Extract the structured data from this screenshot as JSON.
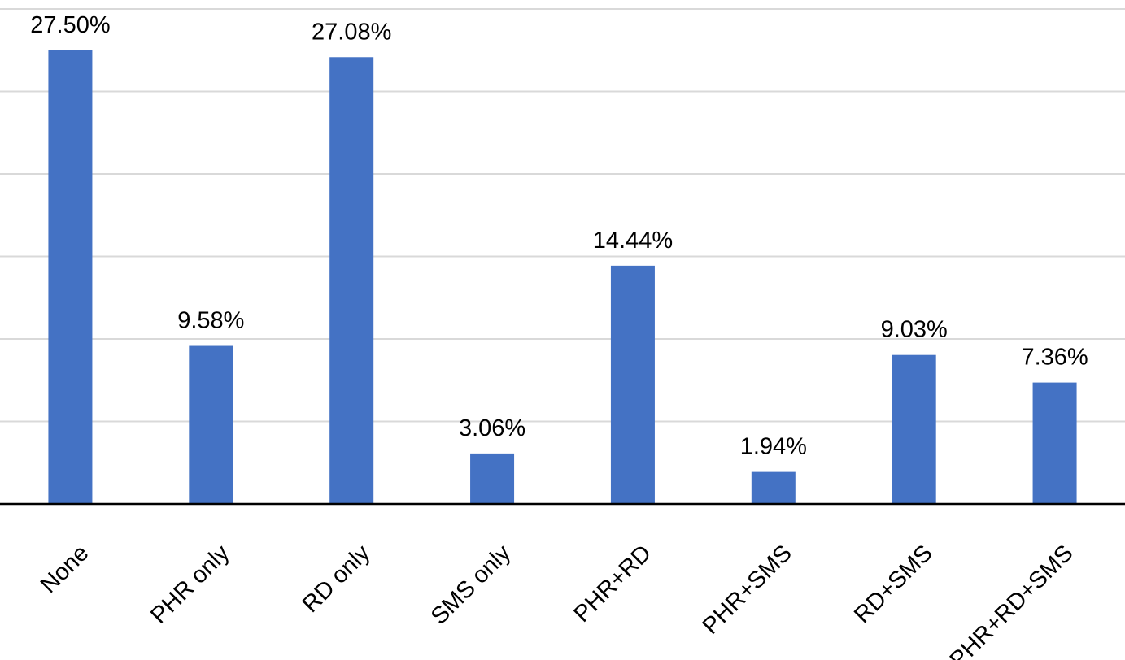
{
  "chart_data": {
    "type": "bar",
    "title": "",
    "xlabel": "",
    "ylabel": "",
    "categories": [
      "None",
      "PHR only",
      "RD only",
      "SMS only",
      "PHR+RD",
      "PHR+SMS",
      "RD+SMS",
      "PHR+RD+SMS"
    ],
    "values": [
      27.5,
      9.58,
      27.08,
      3.06,
      14.44,
      1.94,
      9.03,
      7.36
    ],
    "data_labels": [
      "27.50%",
      "9.58%",
      "27.08%",
      "3.06%",
      "14.44%",
      "1.94%",
      "9.03%",
      "7.36%"
    ],
    "ylim": [
      0,
      30
    ],
    "y_gridlines": [
      5,
      10,
      15,
      20,
      25,
      30
    ],
    "grid": true,
    "y_axis_labels_shown": false,
    "legend": "none",
    "bar_color": "#4472c4",
    "gridline_color": "#d9d9d9"
  }
}
